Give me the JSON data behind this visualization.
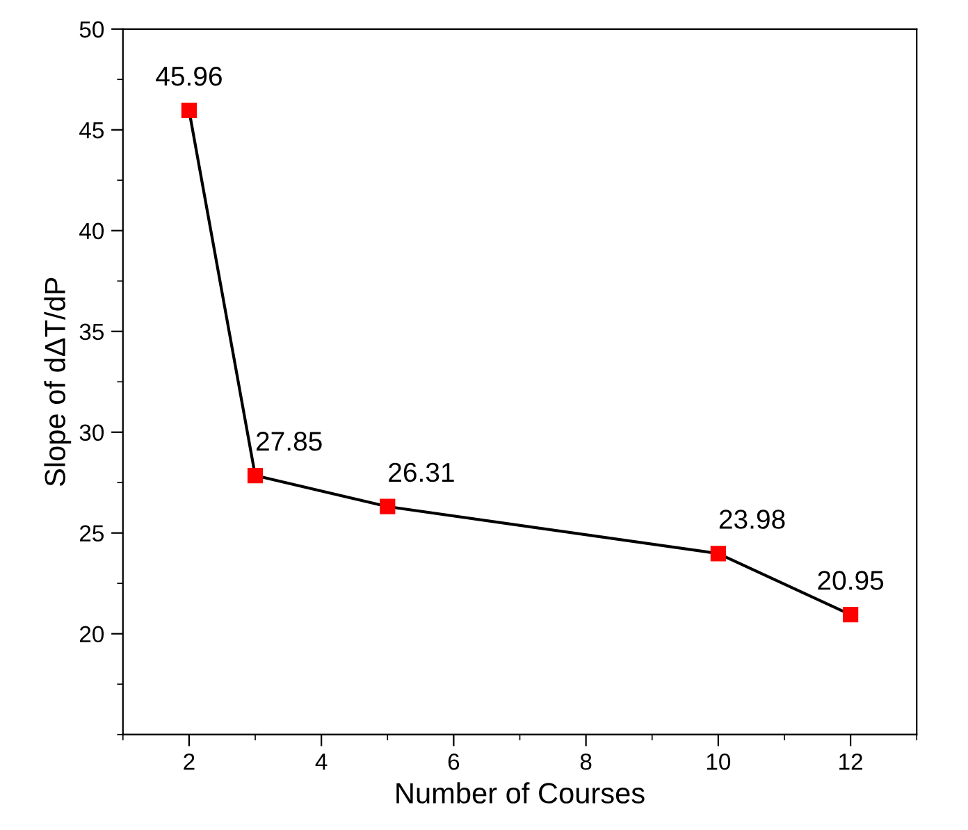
{
  "chart_data": {
    "type": "line",
    "xlabel": "Number of Courses",
    "ylabel": "Slope of dΔT/dP",
    "x": [
      2,
      3,
      5,
      10,
      12
    ],
    "series": [
      {
        "color": "#ff0000",
        "values": [
          45.96,
          27.85,
          26.31,
          23.98,
          20.95
        ]
      }
    ],
    "xlim": [
      1,
      13
    ],
    "xticks": [
      2,
      4,
      6,
      8,
      10,
      12
    ],
    "ylim": [
      15,
      50
    ],
    "yticks": [
      20,
      25,
      30,
      35,
      40,
      45,
      50
    ],
    "marker": "square",
    "line_style": "solid",
    "data_labels": true,
    "grid": false,
    "legend": false
  }
}
